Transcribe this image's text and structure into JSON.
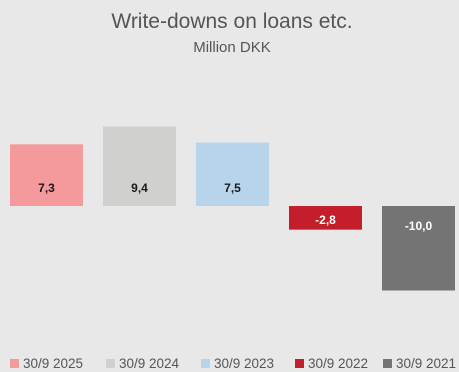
{
  "chart_data": {
    "type": "bar",
    "title": "Write-downs on loans etc.",
    "subtitle": "Million DKK",
    "categories": [
      "30/9 2025",
      "30/9 2024",
      "30/9 2023",
      "30/9 2022",
      "30/9 2021"
    ],
    "values": [
      7.3,
      9.4,
      7.5,
      -2.8,
      -10.0
    ],
    "value_labels": [
      "7,3",
      "9,4",
      "7,5",
      "-2,8",
      "-10,0"
    ],
    "colors": [
      "#f4999c",
      "#d0d0cf",
      "#b8d4ea",
      "#c41e2c",
      "#747474"
    ],
    "label_colors": [
      "#1a1a1a",
      "#1a1a1a",
      "#1a1a1a",
      "#ffffff",
      "#ffffff"
    ],
    "legend": [
      "30/9 2025",
      "30/9 2024",
      "30/9 2023",
      "30/9 2022",
      "30/9 2021"
    ],
    "legend_position": "bottom",
    "grid": false,
    "ylim": [
      -10.0,
      9.4
    ]
  }
}
